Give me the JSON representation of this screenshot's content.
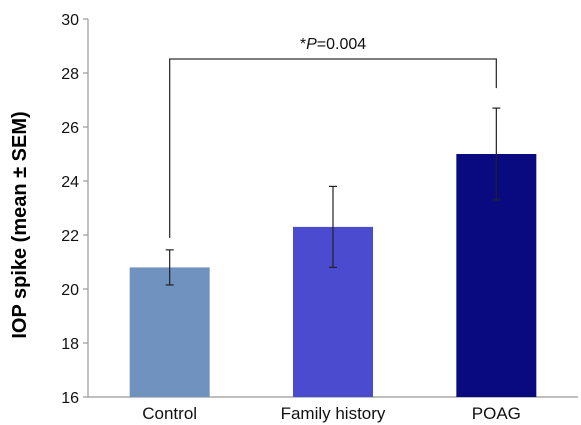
{
  "chart_data": {
    "type": "bar",
    "ylabel": "IOP spike (mean ± SEM)",
    "ylim": [
      16,
      30
    ],
    "yticks": [
      16,
      18,
      20,
      22,
      24,
      26,
      28,
      30
    ],
    "categories": [
      "Control",
      "Family history",
      "POAG"
    ],
    "values": [
      20.8,
      22.3,
      25.0
    ],
    "errors": [
      0.65,
      1.5,
      1.7
    ],
    "colors": [
      "#7092be",
      "#4b4bd0",
      "#0a0a80"
    ],
    "grid": false,
    "annotation": {
      "prefix": "*",
      "italic": "P",
      "suffix": "=0.004",
      "between": [
        "Control",
        "POAG"
      ]
    }
  }
}
